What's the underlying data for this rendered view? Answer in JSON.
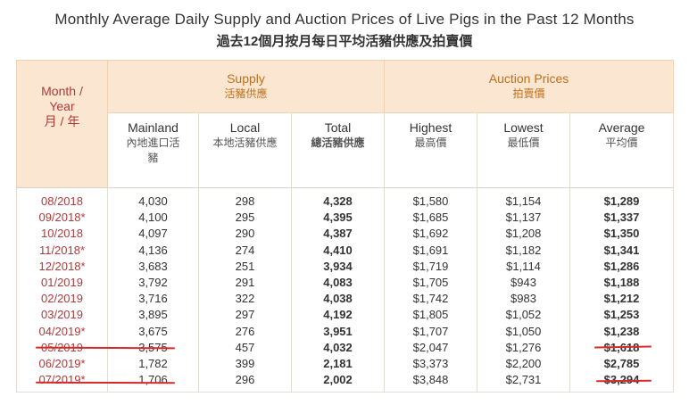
{
  "title": {
    "en": "Monthly Average Daily Supply and Auction Prices of Live Pigs in the Past 12 Months",
    "zh": "過去12個月按月每日平均活豬供應及拍賣價"
  },
  "headers": {
    "month_en1": "Month /",
    "month_en2": "Year",
    "month_zh": "月 / 年",
    "supply_en": "Supply",
    "supply_zh": "活豬供應",
    "auction_en": "Auction Prices",
    "auction_zh": "拍賣價",
    "mainland_en": "Mainland",
    "mainland_zh": "內地進口活豬",
    "local_en": "Local",
    "local_zh": "本地活豬供應",
    "total_en": "Total",
    "total_zh": "總活豬供應",
    "highest_en": "Highest",
    "highest_zh": "最高價",
    "lowest_en": "Lowest",
    "lowest_zh": "最低價",
    "average_en": "Average",
    "average_zh": "平均價"
  },
  "rows": [
    {
      "month": "08/2018",
      "mainland": "4,030",
      "local": "298",
      "total": "4,328",
      "highest": "$1,580",
      "lowest": "$1,154",
      "average": "$1,289"
    },
    {
      "month": "09/2018*",
      "mainland": "4,100",
      "local": "295",
      "total": "4,395",
      "highest": "$1,685",
      "lowest": "$1,137",
      "average": "$1,337"
    },
    {
      "month": "10/2018",
      "mainland": "4,097",
      "local": "290",
      "total": "4,387",
      "highest": "$1,692",
      "lowest": "$1,208",
      "average": "$1,350"
    },
    {
      "month": "11/2018*",
      "mainland": "4,136",
      "local": "274",
      "total": "4,410",
      "highest": "$1,691",
      "lowest": "$1,182",
      "average": "$1,341"
    },
    {
      "month": "12/2018*",
      "mainland": "3,683",
      "local": "251",
      "total": "3,934",
      "highest": "$1,719",
      "lowest": "$1,114",
      "average": "$1,286"
    },
    {
      "month": "01/2019",
      "mainland": "3,792",
      "local": "291",
      "total": "4,083",
      "highest": "$1,705",
      "lowest": "$943",
      "average": "$1,188"
    },
    {
      "month": "02/2019",
      "mainland": "3,716",
      "local": "322",
      "total": "4,038",
      "highest": "$1,742",
      "lowest": "$983",
      "average": "$1,212"
    },
    {
      "month": "03/2019",
      "mainland": "3,895",
      "local": "297",
      "total": "4,192",
      "highest": "$1,805",
      "lowest": "$1,052",
      "average": "$1,253"
    },
    {
      "month": "04/2019*",
      "mainland": "3,675",
      "local": "276",
      "total": "3,951",
      "highest": "$1,707",
      "lowest": "$1,050",
      "average": "$1,238"
    },
    {
      "month": "05/2019",
      "mainland": "3,575",
      "local": "457",
      "total": "4,032",
      "highest": "$2,047",
      "lowest": "$1,276",
      "average": "$1,618"
    },
    {
      "month": "06/2019*",
      "mainland": "1,782",
      "local": "399",
      "total": "2,181",
      "highest": "$3,373",
      "lowest": "$2,200",
      "average": "$2,785"
    },
    {
      "month": "07/2019*",
      "mainland": "1,706",
      "local": "296",
      "total": "2,002",
      "highest": "$3,848",
      "lowest": "$2,731",
      "average": "$3,294"
    }
  ],
  "colors": {
    "header_bg": "#fbe6d2",
    "header_text": "#c0701a",
    "month_text": "#b03a3a",
    "underline": "#d62a2a"
  }
}
